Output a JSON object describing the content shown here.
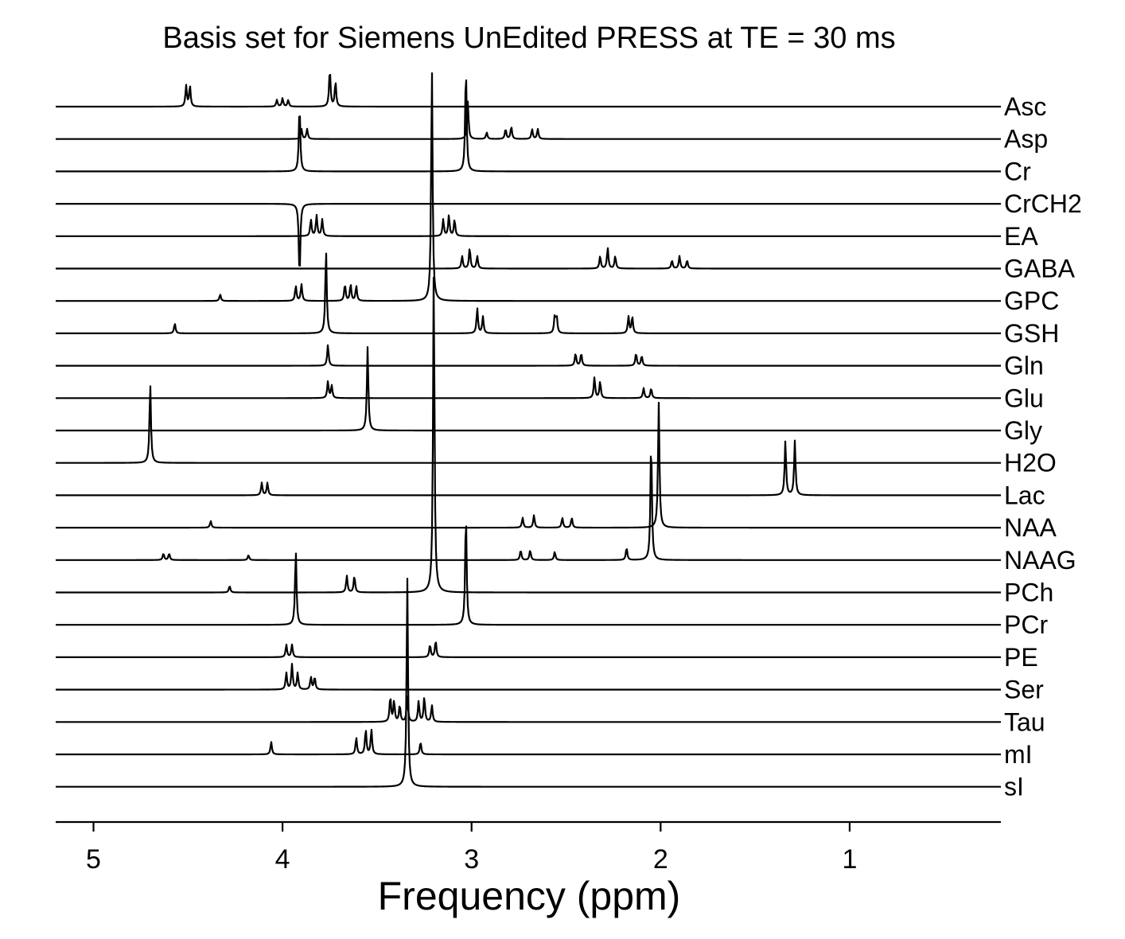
{
  "chart_data": {
    "type": "line",
    "title": "Basis set for Siemens UnEdited PRESS at TE = 30 ms",
    "xlabel": "Frequency (ppm)",
    "ylabel": "",
    "xlim": [
      5.2,
      0.2
    ],
    "x_reversed": true,
    "xticks": [
      5,
      4,
      3,
      2,
      1
    ],
    "grid": false,
    "legend": "labels at right end of each trace",
    "series": [
      {
        "name": "Asc",
        "peaks": [
          [
            4.51,
            0.25
          ],
          [
            4.49,
            0.25
          ],
          [
            4.03,
            0.08
          ],
          [
            4.0,
            0.1
          ],
          [
            3.97,
            0.08
          ],
          [
            3.75,
            0.45
          ],
          [
            3.72,
            0.3
          ]
        ]
      },
      {
        "name": "Asp",
        "peaks": [
          [
            3.9,
            0.12
          ],
          [
            3.87,
            0.12
          ],
          [
            3.02,
            0.45
          ],
          [
            2.92,
            0.08
          ],
          [
            2.82,
            0.12
          ],
          [
            2.79,
            0.15
          ],
          [
            2.68,
            0.12
          ],
          [
            2.65,
            0.12
          ]
        ]
      },
      {
        "name": "Cr",
        "peaks": [
          [
            3.91,
            0.8
          ],
          [
            3.03,
            1.25
          ]
        ]
      },
      {
        "name": "CrCH2",
        "peaks": [
          [
            3.91,
            -0.9
          ]
        ]
      },
      {
        "name": "EA",
        "peaks": [
          [
            3.85,
            0.2
          ],
          [
            3.82,
            0.25
          ],
          [
            3.79,
            0.2
          ],
          [
            3.15,
            0.2
          ],
          [
            3.12,
            0.25
          ],
          [
            3.09,
            0.2
          ]
        ]
      },
      {
        "name": "GABA",
        "peaks": [
          [
            3.05,
            0.15
          ],
          [
            3.01,
            0.25
          ],
          [
            2.97,
            0.15
          ],
          [
            2.32,
            0.15
          ],
          [
            2.28,
            0.25
          ],
          [
            2.24,
            0.15
          ],
          [
            1.94,
            0.1
          ],
          [
            1.9,
            0.15
          ],
          [
            1.86,
            0.1
          ]
        ]
      },
      {
        "name": "GPC",
        "peaks": [
          [
            4.33,
            0.08
          ],
          [
            3.93,
            0.18
          ],
          [
            3.9,
            0.2
          ],
          [
            3.67,
            0.2
          ],
          [
            3.64,
            0.2
          ],
          [
            3.61,
            0.18
          ],
          [
            3.21,
            2.8
          ]
        ]
      },
      {
        "name": "GSH",
        "peaks": [
          [
            4.57,
            0.12
          ],
          [
            3.77,
            1.0
          ],
          [
            2.97,
            0.3
          ],
          [
            2.94,
            0.2
          ],
          [
            2.56,
            0.2
          ],
          [
            2.55,
            0.2
          ],
          [
            2.17,
            0.2
          ],
          [
            2.15,
            0.2
          ]
        ]
      },
      {
        "name": "Gln",
        "peaks": [
          [
            3.76,
            0.25
          ],
          [
            2.45,
            0.15
          ],
          [
            2.42,
            0.15
          ],
          [
            2.13,
            0.15
          ],
          [
            2.1,
            0.12
          ]
        ]
      },
      {
        "name": "Glu",
        "peaks": [
          [
            3.76,
            0.2
          ],
          [
            3.74,
            0.15
          ],
          [
            2.35,
            0.25
          ],
          [
            2.32,
            0.2
          ],
          [
            2.09,
            0.12
          ],
          [
            2.05,
            0.12
          ]
        ]
      },
      {
        "name": "Gly",
        "peaks": [
          [
            3.55,
            1.0
          ]
        ]
      },
      {
        "name": "H2O",
        "peaks": [
          [
            4.7,
            0.95
          ]
        ]
      },
      {
        "name": "Lac",
        "peaks": [
          [
            4.11,
            0.15
          ],
          [
            4.08,
            0.15
          ],
          [
            1.34,
            0.65
          ],
          [
            1.29,
            0.65
          ]
        ]
      },
      {
        "name": "NAA",
        "peaks": [
          [
            4.38,
            0.08
          ],
          [
            2.73,
            0.12
          ],
          [
            2.67,
            0.15
          ],
          [
            2.52,
            0.12
          ],
          [
            2.47,
            0.12
          ],
          [
            2.01,
            1.5
          ]
        ]
      },
      {
        "name": "NAAG",
        "peaks": [
          [
            4.63,
            0.08
          ],
          [
            4.6,
            0.08
          ],
          [
            4.18,
            0.06
          ],
          [
            2.74,
            0.12
          ],
          [
            2.69,
            0.12
          ],
          [
            2.56,
            0.1
          ],
          [
            2.18,
            0.15
          ],
          [
            2.05,
            1.45
          ]
        ]
      },
      {
        "name": "PCh",
        "peaks": [
          [
            4.28,
            0.08
          ],
          [
            3.66,
            0.2
          ],
          [
            3.62,
            0.2
          ],
          [
            3.2,
            3.9
          ]
        ]
      },
      {
        "name": "PCr",
        "peaks": [
          [
            3.93,
            0.9
          ],
          [
            3.03,
            1.35
          ]
        ]
      },
      {
        "name": "PE",
        "peaks": [
          [
            3.98,
            0.15
          ],
          [
            3.95,
            0.15
          ],
          [
            3.22,
            0.15
          ],
          [
            3.19,
            0.2
          ]
        ]
      },
      {
        "name": "Ser",
        "peaks": [
          [
            3.98,
            0.2
          ],
          [
            3.95,
            0.3
          ],
          [
            3.92,
            0.2
          ],
          [
            3.85,
            0.15
          ],
          [
            3.83,
            0.15
          ]
        ]
      },
      {
        "name": "Tau",
        "peaks": [
          [
            3.43,
            0.3
          ],
          [
            3.41,
            0.25
          ],
          [
            3.38,
            0.2
          ],
          [
            3.34,
            0.3
          ],
          [
            3.28,
            0.25
          ],
          [
            3.25,
            0.3
          ],
          [
            3.21,
            0.2
          ]
        ]
      },
      {
        "name": "mI",
        "peaks": [
          [
            4.06,
            0.15
          ],
          [
            3.61,
            0.2
          ],
          [
            3.56,
            0.3
          ],
          [
            3.53,
            0.3
          ],
          [
            3.27,
            0.15
          ]
        ]
      },
      {
        "name": "sI",
        "peaks": [
          [
            3.34,
            2.5
          ]
        ]
      }
    ]
  }
}
